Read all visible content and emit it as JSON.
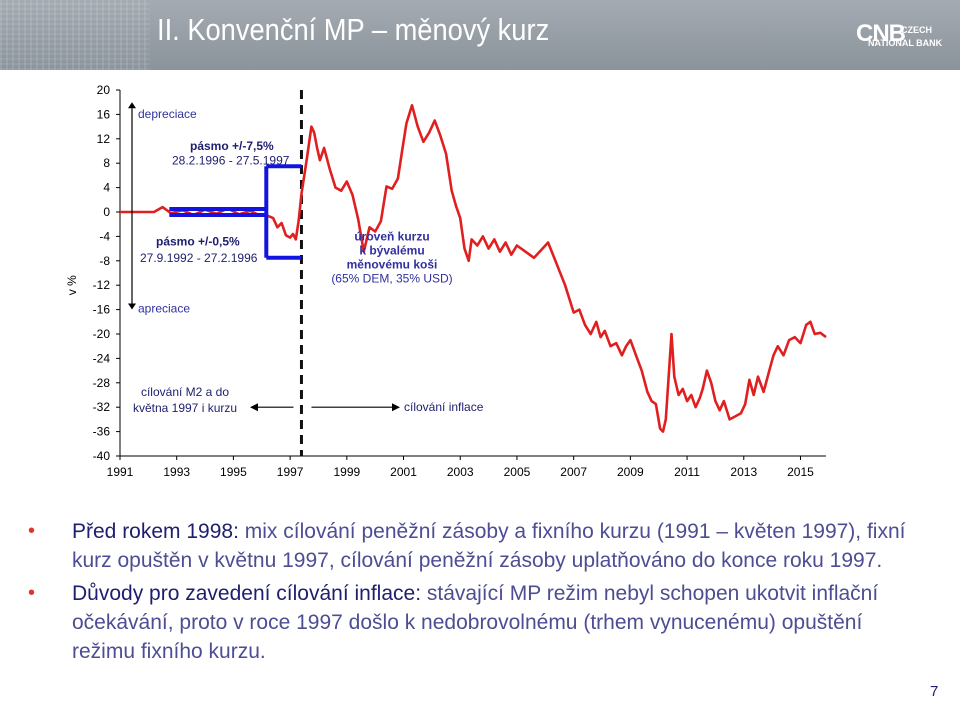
{
  "header": {
    "title": "II. Konvenční MP – měnový kurz",
    "logo": {
      "mark": "CNB",
      "line1": "CZECH",
      "line2": "NATIONAL BANK"
    }
  },
  "colors": {
    "line": "#e02020",
    "band": "#1414e0",
    "divider": "#111111",
    "text_blue": "#1e1e6e",
    "label_blue": "#3030a0",
    "bullet_red": "#d73a2d"
  },
  "chart_data": {
    "type": "line",
    "ylabel": "v %",
    "ylim": [
      -40,
      20
    ],
    "yticks": [
      20,
      16,
      12,
      8,
      4,
      0,
      -4,
      -8,
      -12,
      -16,
      -20,
      -24,
      -28,
      -32,
      -36,
      -40
    ],
    "xlim": [
      1991.0,
      2015.9
    ],
    "xticks": [
      1991,
      1993,
      1995,
      1997,
      1999,
      2001,
      2003,
      2005,
      2007,
      2009,
      2011,
      2013,
      2015
    ],
    "divider_x": 1997.4,
    "series": [
      {
        "name": "",
        "points": [
          [
            1991.0,
            0
          ],
          [
            1992.0,
            0
          ],
          [
            1992.2,
            0
          ],
          [
            1992.5,
            0.8
          ],
          [
            1992.8,
            -0.2
          ],
          [
            1993.2,
            0.3
          ],
          [
            1993.6,
            -0.5
          ],
          [
            1994.0,
            0.4
          ],
          [
            1994.4,
            -0.3
          ],
          [
            1994.8,
            0.6
          ],
          [
            1995.2,
            -0.4
          ],
          [
            1995.6,
            0.2
          ],
          [
            1995.9,
            -0.5
          ],
          [
            1996.2,
            -0.6
          ],
          [
            1996.4,
            -1.0
          ],
          [
            1996.55,
            -2.5
          ],
          [
            1996.7,
            -1.8
          ],
          [
            1996.85,
            -3.8
          ],
          [
            1997.0,
            -4.2
          ],
          [
            1997.1,
            -3.6
          ],
          [
            1997.2,
            -4.5
          ],
          [
            1997.3,
            -1.5
          ],
          [
            1997.4,
            3.0
          ],
          [
            1997.5,
            6.0
          ],
          [
            1997.6,
            9.0
          ],
          [
            1997.75,
            14.0
          ],
          [
            1997.85,
            13.0
          ],
          [
            1997.95,
            10.5
          ],
          [
            1998.05,
            8.5
          ],
          [
            1998.2,
            10.5
          ],
          [
            1998.4,
            7.0
          ],
          [
            1998.6,
            4.0
          ],
          [
            1998.8,
            3.5
          ],
          [
            1999.0,
            5.0
          ],
          [
            1999.2,
            2.8
          ],
          [
            1999.4,
            -1.2
          ],
          [
            1999.6,
            -6.5
          ],
          [
            1999.8,
            -2.5
          ],
          [
            2000.0,
            -3.2
          ],
          [
            2000.2,
            -1.5
          ],
          [
            2000.4,
            4.2
          ],
          [
            2000.6,
            3.8
          ],
          [
            2000.8,
            5.5
          ],
          [
            2000.95,
            10.0
          ],
          [
            2001.1,
            14.5
          ],
          [
            2001.3,
            17.5
          ],
          [
            2001.5,
            14.0
          ],
          [
            2001.7,
            11.5
          ],
          [
            2001.9,
            13.0
          ],
          [
            2002.1,
            15.0
          ],
          [
            2002.3,
            12.5
          ],
          [
            2002.5,
            9.5
          ],
          [
            2002.7,
            3.5
          ],
          [
            2002.85,
            1.0
          ],
          [
            2003.0,
            -1.0
          ],
          [
            2003.15,
            -6.0
          ],
          [
            2003.3,
            -8.0
          ],
          [
            2003.4,
            -4.5
          ],
          [
            2003.6,
            -5.5
          ],
          [
            2003.8,
            -4.0
          ],
          [
            2004.0,
            -6.0
          ],
          [
            2004.2,
            -4.5
          ],
          [
            2004.4,
            -6.5
          ],
          [
            2004.6,
            -5.0
          ],
          [
            2004.8,
            -7.0
          ],
          [
            2005.0,
            -5.5
          ],
          [
            2005.3,
            -6.5
          ],
          [
            2005.6,
            -7.5
          ],
          [
            2005.9,
            -6.0
          ],
          [
            2006.1,
            -5.0
          ],
          [
            2006.4,
            -8.5
          ],
          [
            2006.7,
            -12.0
          ],
          [
            2007.0,
            -16.5
          ],
          [
            2007.2,
            -16.0
          ],
          [
            2007.4,
            -18.5
          ],
          [
            2007.6,
            -20.0
          ],
          [
            2007.8,
            -18.0
          ],
          [
            2007.95,
            -20.5
          ],
          [
            2008.1,
            -19.5
          ],
          [
            2008.3,
            -22.0
          ],
          [
            2008.5,
            -21.5
          ],
          [
            2008.7,
            -23.5
          ],
          [
            2008.85,
            -22.0
          ],
          [
            2009.0,
            -21.0
          ],
          [
            2009.2,
            -23.5
          ],
          [
            2009.4,
            -26.0
          ],
          [
            2009.6,
            -29.5
          ],
          [
            2009.75,
            -31.0
          ],
          [
            2009.9,
            -31.5
          ],
          [
            2010.05,
            -35.5
          ],
          [
            2010.15,
            -36.0
          ],
          [
            2010.25,
            -34.0
          ],
          [
            2010.45,
            -20.0
          ],
          [
            2010.55,
            -27.0
          ],
          [
            2010.7,
            -30.0
          ],
          [
            2010.85,
            -29.0
          ],
          [
            2011.0,
            -31.0
          ],
          [
            2011.15,
            -30.0
          ],
          [
            2011.3,
            -32.0
          ],
          [
            2011.45,
            -30.5
          ],
          [
            2011.55,
            -29.0
          ],
          [
            2011.7,
            -26.0
          ],
          [
            2011.85,
            -28.0
          ],
          [
            2012.0,
            -31.0
          ],
          [
            2012.15,
            -32.5
          ],
          [
            2012.3,
            -31.0
          ],
          [
            2012.5,
            -34.0
          ],
          [
            2012.7,
            -33.5
          ],
          [
            2012.9,
            -33.0
          ],
          [
            2013.05,
            -31.5
          ],
          [
            2013.2,
            -27.5
          ],
          [
            2013.35,
            -30.0
          ],
          [
            2013.5,
            -27.0
          ],
          [
            2013.7,
            -29.5
          ],
          [
            2013.9,
            -26.0
          ],
          [
            2014.05,
            -23.5
          ],
          [
            2014.2,
            -22.0
          ],
          [
            2014.4,
            -23.5
          ],
          [
            2014.6,
            -21.0
          ],
          [
            2014.8,
            -20.5
          ],
          [
            2015.0,
            -21.5
          ],
          [
            2015.2,
            -18.5
          ],
          [
            2015.35,
            -18.0
          ],
          [
            2015.5,
            -20.0
          ],
          [
            2015.7,
            -19.8
          ],
          [
            2015.9,
            -20.5
          ]
        ]
      }
    ],
    "bands": [
      {
        "label": "pásmo +/-0,5%",
        "dates": "27.9.1992 - 27.2.1996",
        "x": [
          1992.74,
          1996.16
        ],
        "y": [
          0.5,
          -0.5
        ]
      },
      {
        "label": "pásmo +/-7,5%",
        "dates": "28.2.1996 - 27.5.1997",
        "x": [
          1996.16,
          1997.4
        ],
        "y": [
          7.5,
          -7.5
        ]
      }
    ],
    "annotations": {
      "depreciace": "depreciace",
      "apreciace": "apreciace",
      "basket": [
        "úroveň kurzu",
        "k bývalému",
        "měnovému koši",
        "(65% DEM, 35% USD)"
      ],
      "m2_targeting": [
        "cílování M2 a do",
        "května 1997 i kurzu"
      ],
      "inflation_targeting": "cílování inflace"
    }
  },
  "bullets": [
    {
      "lead": "Před rokem 1998:",
      "text": " mix cílování peněžní zásoby a fixního kurzu (1991 – květen 1997), fixní kurz opuštěn v květnu 1997, cílování peněžní zásoby uplatňováno do konce roku 1997."
    },
    {
      "lead": "Důvody pro zavedení cílování inflace:",
      "text": " stávající MP režim nebyl schopen ukotvit inflační očekávání, proto v roce 1997 došlo k nedobrovolnému (trhem vynucenému) opuštění režimu fixního kurzu."
    }
  ],
  "page_number": "7"
}
